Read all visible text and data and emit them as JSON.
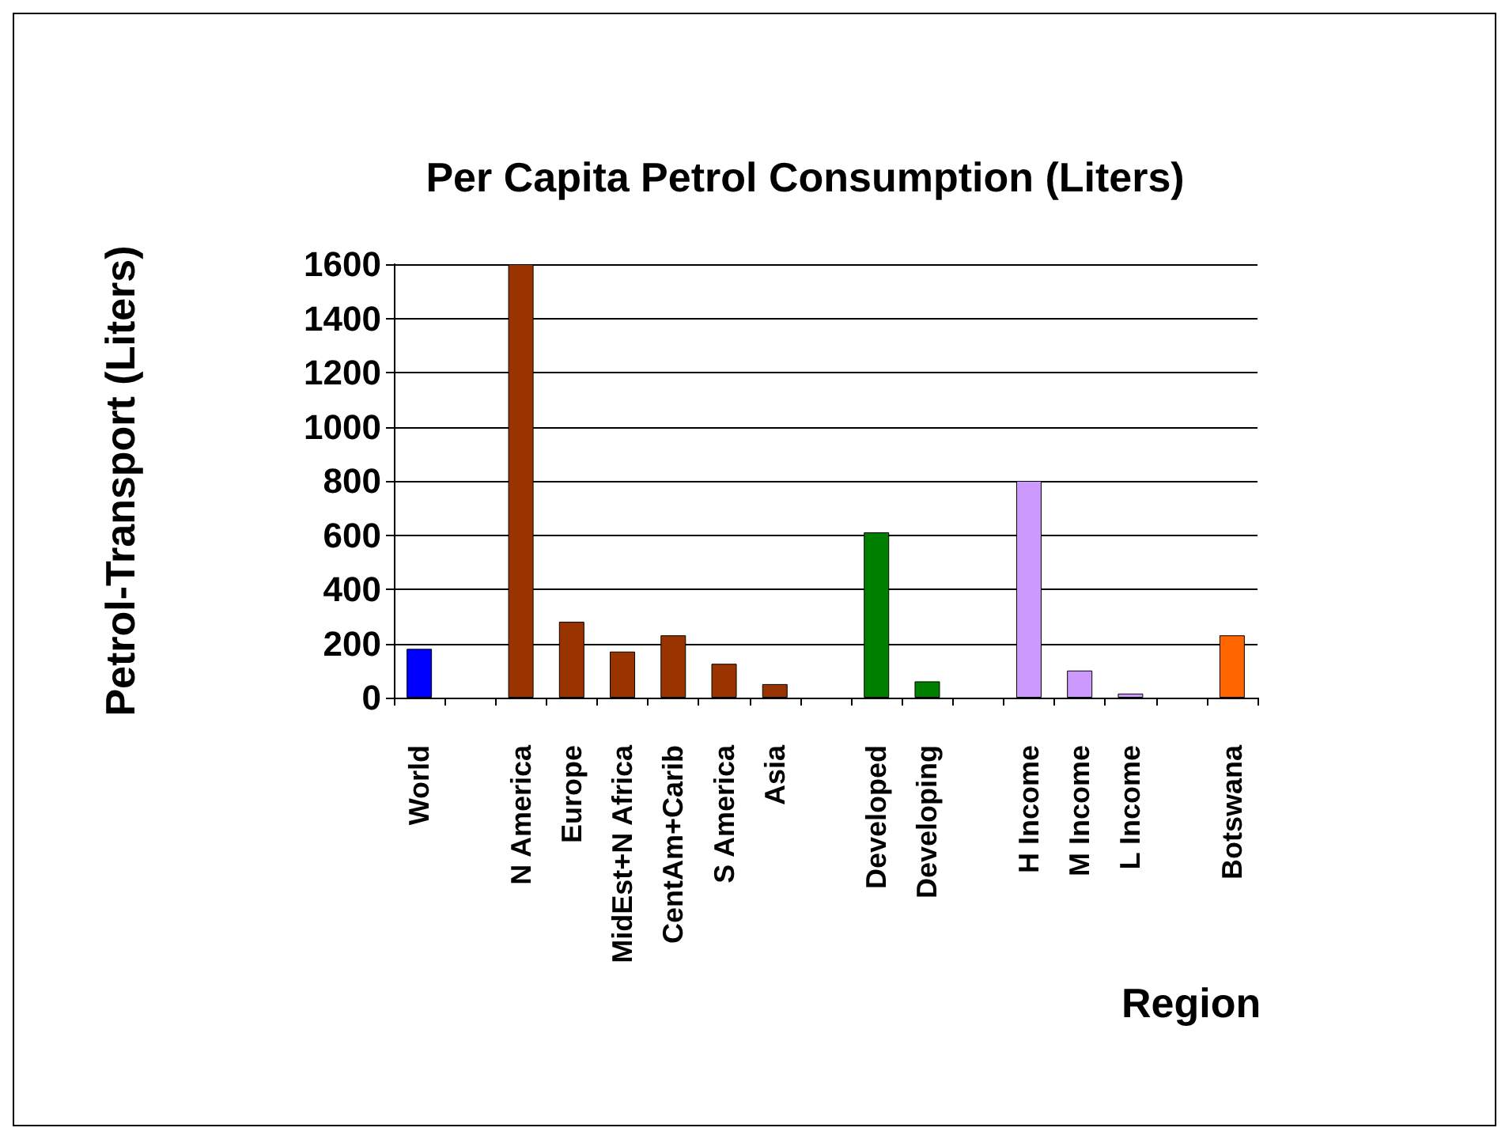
{
  "chart_data": {
    "type": "bar",
    "title": "Per Capita Petrol Consumption (Liters)",
    "xlabel": "Region",
    "ylabel": "Petrol-Transport (Liters)",
    "categories": [
      "World",
      null,
      "N America",
      "Europe",
      "MidEst+N Africa",
      "CentAm+Carib",
      "S America",
      "Asia",
      null,
      "Developed",
      "Developing",
      null,
      "H Income",
      "M Income",
      "L Income",
      null,
      "Botswana"
    ],
    "values": [
      180,
      null,
      1600,
      280,
      170,
      230,
      125,
      50,
      null,
      610,
      60,
      null,
      800,
      100,
      15,
      null,
      230
    ],
    "colors": [
      "#0000ff",
      "#ffffff",
      "#993300",
      "#993300",
      "#993300",
      "#993300",
      "#993300",
      "#993300",
      "#ffffff",
      "#008000",
      "#008000",
      "#ffffff",
      "#cc99ff",
      "#cc99ff",
      "#cc99ff",
      "#ffffff",
      "#ff6600"
    ],
    "ylim": [
      0,
      1600
    ],
    "yticks": [
      0,
      200,
      400,
      600,
      800,
      1000,
      1200,
      1400,
      1600
    ],
    "grid": "y"
  }
}
